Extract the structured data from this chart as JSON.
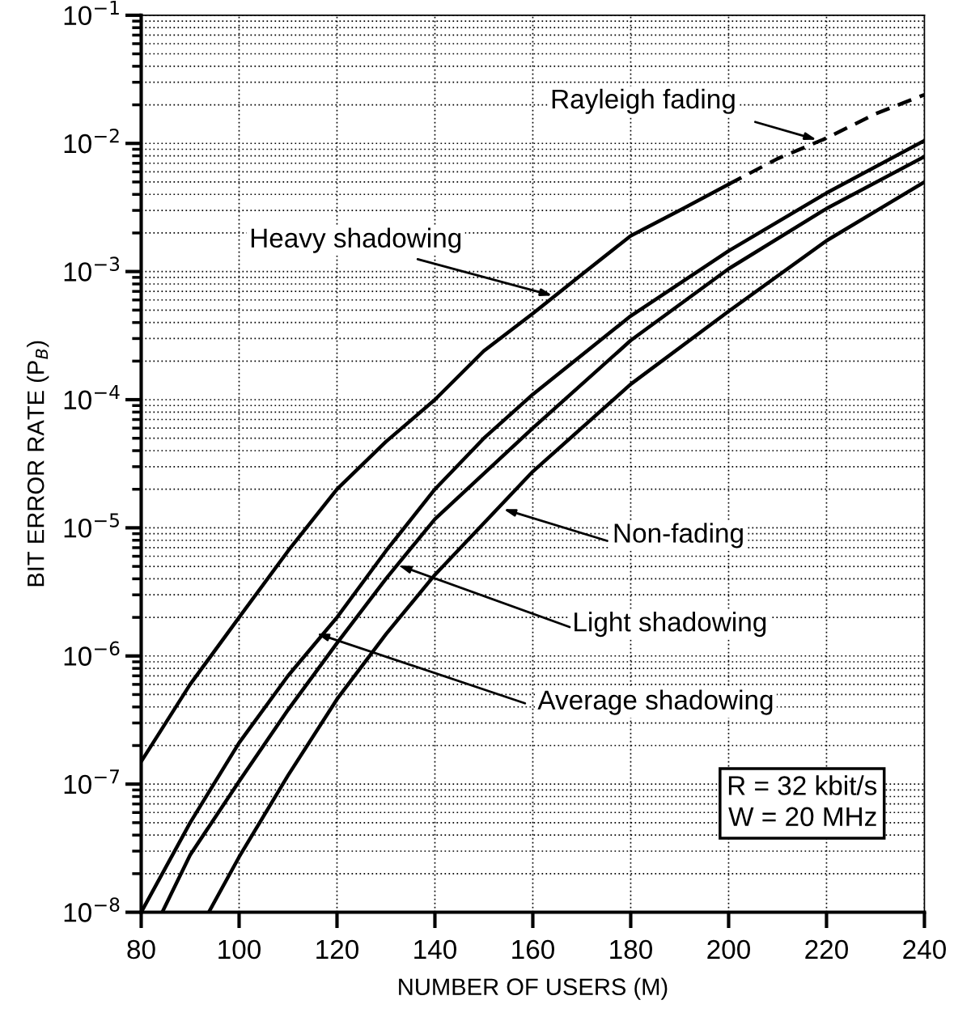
{
  "chart_data": {
    "type": "line",
    "xlabel": "NUMBER OF USERS (M)",
    "ylabel": "BIT ERROR RATE (P$_{B}$)",
    "log": "y",
    "grid": true,
    "marker": "none",
    "xlim": [
      80,
      240
    ],
    "xticks": [
      80,
      100,
      120,
      140,
      160,
      180,
      200,
      220,
      240
    ],
    "ylim": [
      1e-08,
      0.1
    ],
    "yticks": [
      {
        "value": 1e-08,
        "label": "10$^{−8}$"
      },
      {
        "value": 1e-07,
        "label": "10$^{−7}$"
      },
      {
        "value": 1e-06,
        "label": "10$^{−6}$"
      },
      {
        "value": 1e-05,
        "label": "10$^{−5}$"
      },
      {
        "value": 0.0001,
        "label": "10$^{−4}$"
      },
      {
        "value": 0.001,
        "label": "10$^{−3}$"
      },
      {
        "value": 0.01,
        "label": "10$^{−2}$"
      },
      {
        "value": 0.1,
        "label": "10$^{−1}$"
      }
    ],
    "series": [
      {
        "color": "#000000",
        "line_style": "solid",
        "x": [
          80,
          90,
          100,
          110,
          120,
          130,
          140,
          150,
          160,
          170,
          180,
          190,
          200
        ],
        "values": [
          1.5e-07,
          6e-07,
          2e-06,
          6.6e-06,
          2e-05,
          4.7e-05,
          0.0001,
          0.00024,
          0.00047,
          0.00095,
          0.0019,
          0.003,
          0.0048
        ]
      },
      {
        "color": "#000000",
        "line_style": "dashed",
        "x": [
          200,
          210,
          220,
          230,
          240
        ],
        "values": [
          0.0048,
          0.0076,
          0.011,
          0.017,
          0.024
        ]
      },
      {
        "color": "#000000",
        "line_style": "solid",
        "x": [
          80,
          90,
          100,
          110,
          120,
          130,
          140,
          150,
          160,
          180,
          200,
          220,
          240
        ],
        "values": [
          1e-08,
          5e-08,
          2.1e-07,
          7e-07,
          2e-06,
          6.6e-06,
          2e-05,
          5e-05,
          0.00011,
          0.00045,
          0.00145,
          0.0041,
          0.0105
        ]
      },
      {
        "color": "#000000",
        "line_style": "solid",
        "x": [
          84.3,
          90,
          100,
          110,
          120,
          130,
          140,
          160,
          180,
          200,
          220,
          240
        ],
        "values": [
          1e-08,
          2.8e-08,
          1.05e-07,
          3.8e-07,
          1.26e-06,
          4e-06,
          1.17e-05,
          6e-05,
          0.00029,
          0.00105,
          0.0031,
          0.0079
        ]
      },
      {
        "color": "#000000",
        "line_style": "solid",
        "x": [
          93.8,
          100,
          110,
          120,
          130,
          140,
          160,
          180,
          200,
          220,
          240
        ],
        "values": [
          1e-08,
          2.7e-08,
          1.17e-07,
          4.6e-07,
          1.48e-06,
          4.3e-06,
          2.75e-05,
          0.000132,
          0.00049,
          0.00174,
          0.005
        ]
      }
    ],
    "annotations": [
      {
        "text": "Rayleigh fading",
        "x": 218,
        "y": 0.0107
      },
      {
        "text": "Heavy shadowing",
        "x": 164,
        "y": 0.00065
      },
      {
        "text": "Non-fading",
        "x": 154,
        "y": 1.4e-05
      },
      {
        "text": "Light shadowing",
        "x": 132.6,
        "y": 5.1e-06
      },
      {
        "text": "Average shadowing",
        "x": 115.8,
        "y": 1.5e-06
      },
      "R = 32 kbit/s\nW = 20 MHz"
    ]
  }
}
